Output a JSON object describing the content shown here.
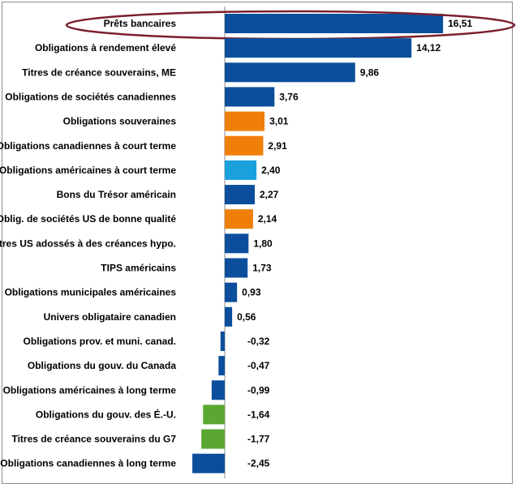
{
  "chart_data": {
    "type": "bar",
    "orientation": "horizontal",
    "title": "",
    "xlabel": "",
    "ylabel": "",
    "grid": false,
    "legend": "none",
    "highlighted_category": "Prêts bancaires",
    "highlight_color": "#7b1f2e",
    "categories": [
      "Prêts bancaires",
      "Obligations à rendement élevé",
      "Titres de créance souverains, ME",
      "Obligations de sociétés canadiennes",
      "Obligations souveraines",
      "Obligations canadiennes à court terme",
      "Obligations américaines à court terme",
      "Bons du Trésor américain",
      "Oblig. de sociétés US de bonne qualité",
      "Titres US adossés à des créances hypo.",
      "TIPS américains",
      "Obligations municipales américaines",
      "Univers obligataire canadien",
      "Obligations prov. et muni. canad.",
      "Obligations du gouv. du Canada",
      "Obligations américaines à long terme",
      "Obligations du gouv. des É.-U.",
      "Titres de créance souverains du G7",
      "Obligations canadiennes à long terme"
    ],
    "values": [
      16.51,
      14.12,
      9.86,
      3.76,
      3.01,
      2.91,
      2.4,
      2.27,
      2.14,
      1.8,
      1.73,
      0.93,
      0.56,
      -0.32,
      -0.47,
      -0.99,
      -1.64,
      -1.77,
      -2.45
    ],
    "value_labels": [
      "16,51",
      "14,12",
      "9,86",
      "3,76",
      "3,01",
      "2,91",
      "2,40",
      "2,27",
      "2,14",
      "1,80",
      "1,73",
      "0,93",
      "0,56",
      "-0,32",
      "-0,47",
      "-0,99",
      "-1,64",
      "-1,77",
      "-2,45"
    ],
    "bar_colors": [
      "#0b4f9c",
      "#0b4f9c",
      "#0b4f9c",
      "#0b4f9c",
      "#f07f09",
      "#f07f09",
      "#19a0dd",
      "#0b4f9c",
      "#f07f09",
      "#0b4f9c",
      "#0b4f9c",
      "#0b4f9c",
      "#0b4f9c",
      "#0b4f9c",
      "#0b4f9c",
      "#0b4f9c",
      "#5aa832",
      "#5aa832",
      "#0b4f9c"
    ]
  }
}
